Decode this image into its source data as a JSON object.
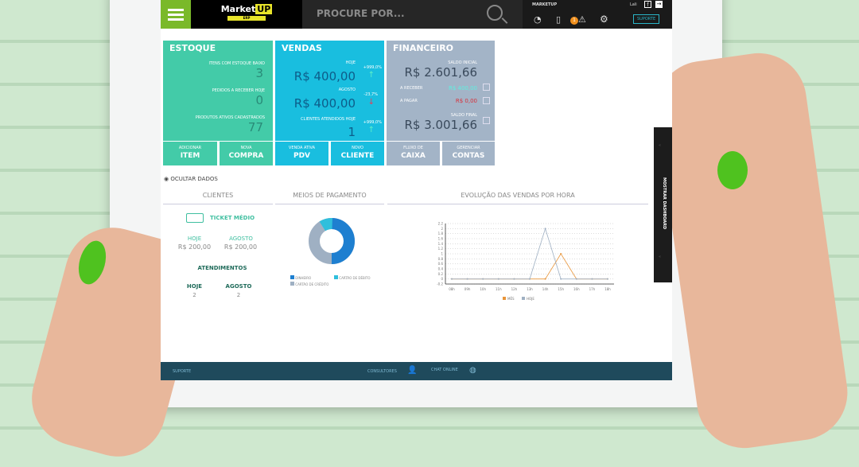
{
  "header": {
    "logo": "Market",
    "logo_up": "UP",
    "logo_sub": "ERP",
    "search_placeholder": "PROCURE POR...",
    "company": "MARKETUP",
    "user": "Lali",
    "notification_count": "1",
    "support_label": "SUPORTE"
  },
  "estoque": {
    "title": "ESTOQUE",
    "items": [
      {
        "label": "ITENS COM ESTOQUE BAIXO",
        "value": "3"
      },
      {
        "label": "PEDIDOS A RECEBER HOJE",
        "value": "0"
      },
      {
        "label": "PRODUTOS ATIVOS CADASTRADOS",
        "value": "77"
      }
    ],
    "buttons": [
      {
        "small": "ADICIONAR",
        "big": "ITEM"
      },
      {
        "small": "NOVA",
        "big": "COMPRA"
      }
    ]
  },
  "vendas": {
    "title": "VENDAS",
    "items": [
      {
        "label": "HOJE",
        "value": "R$ 400,00",
        "change": "+999,0%",
        "trend": "up"
      },
      {
        "label": "AGOSTO",
        "value": "R$ 400,00",
        "change": "-23,7%",
        "trend": "down"
      },
      {
        "label": "CLIENTES ATENDIDOS HOJE",
        "value": "1",
        "change": "+999,0%",
        "trend": "up"
      }
    ],
    "buttons": [
      {
        "small": "VENDA ATIVA",
        "big": "PDV"
      },
      {
        "small": "NOVO",
        "big": "CLIENTE"
      }
    ]
  },
  "financeiro": {
    "title": "FINANCEIRO",
    "saldo_inicial_label": "SALDO INICIAL",
    "saldo_inicial": "R$ 2.601,66",
    "a_receber_label": "A RECEBER",
    "a_receber": "R$ 400,00",
    "a_pagar_label": "A PAGAR",
    "a_pagar": "R$ 0,00",
    "saldo_final_label": "SALDO FINAL",
    "saldo_final": "R$ 3.001,66",
    "buttons": [
      {
        "small": "FLUXO DE",
        "big": "CAIXA"
      },
      {
        "small": "GERENCIAR",
        "big": "CONTAS"
      }
    ]
  },
  "hide_data_label": "OCULTAR DADOS",
  "clientes": {
    "title": "CLIENTES",
    "ticket_label": "TICKET MÉDIO",
    "hoje_label": "HOJE",
    "hoje_value": "R$ 200,00",
    "agosto_label": "AGOSTO",
    "agosto_value": "R$ 200,00",
    "atend_label": "ATENDIMENTOS",
    "atend_hoje": "2",
    "atend_agosto": "2"
  },
  "pagamento": {
    "title": "MEIOS DE PAGAMENTO",
    "legend": [
      "DINHEIRO",
      "CARTÃO DE DÉBITO",
      "CARTÃO DE CRÉDITO"
    ],
    "colors": [
      "#1e7fd0",
      "#2fbfdc",
      "#9fb0c3"
    ]
  },
  "chart_data": {
    "type": "line",
    "title": "EVOLUÇÃO DAS VENDAS POR HORA",
    "categories": [
      "08h",
      "09h",
      "10h",
      "11h",
      "12h",
      "13h",
      "14h",
      "15h",
      "16h",
      "17h",
      "18h"
    ],
    "ylim": [
      -0.2,
      2.2
    ],
    "yticks": [
      "2.2",
      "2",
      "1.8",
      "1.6",
      "1.4",
      "1.2",
      "1",
      "0.8",
      "0.6",
      "0.4",
      "0.2",
      "0",
      "-0.2"
    ],
    "grid": true,
    "legend": "bottom",
    "series": [
      {
        "name": "MÊS",
        "color": "#e8953a",
        "values": [
          0,
          0,
          0,
          0,
          0,
          0,
          0,
          1,
          0,
          0,
          0
        ]
      },
      {
        "name": "HOJE",
        "color": "#9fb0c3",
        "values": [
          0,
          0,
          0,
          0,
          0,
          0,
          2,
          0,
          0,
          0,
          0
        ]
      }
    ]
  },
  "footer": {
    "support": "SUPORTE",
    "consultores": "CONSULTORES",
    "chat": "CHAT ONLINE"
  },
  "side_tab": "MOSTRAR DASHBOARD"
}
